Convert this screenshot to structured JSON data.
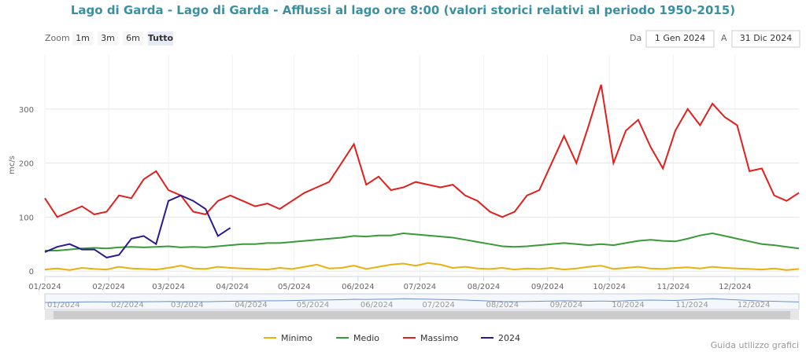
{
  "ui": {
    "zoom": "Zoom",
    "buttons": [
      "1m",
      "3m",
      "6m",
      "Tutto"
    ],
    "from_label": "Da",
    "from": "1 Gen 2024",
    "to_label": "A",
    "to": "31 Dic 2024",
    "help": "Guida utilizzo grafici"
  },
  "chart_data": {
    "type": "line",
    "title": "Lago di Garda - Lago di Garda - Afflussi al lago ore 8:00 (valori storici relativi al periodo 1950-2015)",
    "y_label": "mc/s",
    "x": [
      0,
      6,
      12,
      18,
      24,
      30,
      36,
      42,
      48,
      54,
      60,
      66,
      72,
      78,
      84,
      90,
      96,
      102,
      108,
      114,
      120,
      126,
      132,
      138,
      144,
      150,
      156,
      162,
      168,
      174,
      180,
      186,
      192,
      198,
      204,
      210,
      216,
      222,
      228,
      234,
      240,
      246,
      252,
      258,
      264,
      270,
      276,
      282,
      288,
      294,
      300,
      306,
      312,
      318,
      324,
      330,
      336,
      342,
      348,
      354,
      360,
      366
    ],
    "xlim": [
      0,
      366
    ],
    "xticks": [
      {
        "value": 0,
        "label": "01/2024"
      },
      {
        "value": 31,
        "label": "02/2024"
      },
      {
        "value": 60,
        "label": "03/2024"
      },
      {
        "value": 91,
        "label": "04/2024"
      },
      {
        "value": 121,
        "label": "05/2024"
      },
      {
        "value": 152,
        "label": "06/2024"
      },
      {
        "value": 182,
        "label": "07/2024"
      },
      {
        "value": 213,
        "label": "08/2024"
      },
      {
        "value": 244,
        "label": "09/2024"
      },
      {
        "value": 274,
        "label": "10/2024"
      },
      {
        "value": 305,
        "label": "11/2024"
      },
      {
        "value": 335,
        "label": "12/2024"
      }
    ],
    "ylim": [
      -10,
      400
    ],
    "yticks": [
      0,
      100,
      200,
      300
    ],
    "grid": true,
    "series": [
      {
        "name": "Minimo",
        "color": "#e8b010",
        "values": [
          3,
          5,
          2,
          6,
          4,
          3,
          8,
          5,
          4,
          3,
          6,
          10,
          5,
          4,
          8,
          6,
          5,
          4,
          3,
          6,
          4,
          8,
          12,
          5,
          6,
          10,
          4,
          8,
          12,
          14,
          10,
          15,
          12,
          6,
          8,
          5,
          4,
          6,
          3,
          5,
          4,
          6,
          3,
          5,
          8,
          10,
          4,
          6,
          8,
          5,
          4,
          6,
          7,
          5,
          8,
          6,
          5,
          4,
          3,
          5,
          2,
          4
        ]
      },
      {
        "name": "Medio",
        "color": "#3a9a3a",
        "values": [
          38,
          38,
          40,
          42,
          43,
          42,
          44,
          45,
          44,
          45,
          46,
          44,
          45,
          44,
          46,
          48,
          50,
          50,
          52,
          52,
          54,
          56,
          58,
          60,
          62,
          65,
          64,
          66,
          66,
          70,
          68,
          66,
          64,
          62,
          58,
          54,
          50,
          46,
          45,
          46,
          48,
          50,
          52,
          50,
          48,
          50,
          48,
          52,
          56,
          58,
          56,
          55,
          60,
          66,
          70,
          65,
          60,
          55,
          50,
          48,
          45,
          42
        ]
      },
      {
        "name": "Massimo",
        "color": "#e0201c",
        "values": [
          135,
          100,
          110,
          120,
          105,
          110,
          140,
          135,
          170,
          185,
          150,
          140,
          110,
          105,
          130,
          140,
          130,
          120,
          125,
          115,
          130,
          145,
          155,
          165,
          200,
          235,
          160,
          175,
          150,
          155,
          165,
          160,
          155,
          160,
          140,
          130,
          110,
          100,
          110,
          140,
          150,
          200,
          250,
          200,
          270,
          345,
          200,
          260,
          280,
          230,
          190,
          260,
          300,
          270,
          310,
          285,
          270,
          185,
          190,
          140,
          130,
          145
        ]
      },
      {
        "name": "2024",
        "color": "#2a1a8c",
        "values": [
          35,
          45,
          50,
          40,
          40,
          25,
          30,
          60,
          65,
          50,
          130,
          140,
          130,
          115,
          65,
          80,
          null,
          null,
          null,
          null,
          null,
          null,
          null,
          null,
          null,
          null,
          null,
          null,
          null,
          null,
          null,
          null,
          null,
          null,
          null,
          null,
          null,
          null,
          null,
          null,
          null,
          null,
          null,
          null,
          null,
          null,
          null,
          null,
          null,
          null,
          null,
          null,
          null,
          null,
          null,
          null,
          null,
          null,
          null,
          null,
          null,
          null
        ]
      }
    ]
  }
}
